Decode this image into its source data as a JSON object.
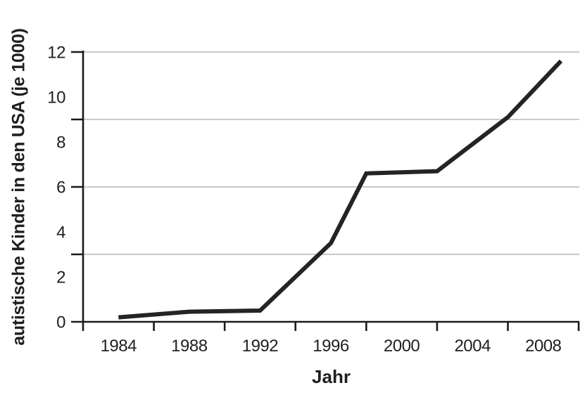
{
  "chart_data": {
    "type": "line",
    "title": "",
    "xlabel": "Jahr",
    "ylabel": "autistische Kinder in den USA (je 1000)",
    "x": [
      1984,
      1988,
      1992,
      1996,
      1998,
      2002,
      2006,
      2009
    ],
    "y": [
      0.2,
      0.45,
      0.5,
      3.5,
      6.6,
      6.7,
      9.1,
      11.6
    ],
    "xlim": [
      1982,
      2010
    ],
    "ylim": [
      0,
      12
    ],
    "x_tick_labels": [
      "1984",
      "1988",
      "1992",
      "1996",
      "2000",
      "2004",
      "2008"
    ],
    "x_tick_label_years": [
      1984,
      1988,
      1992,
      1996,
      2000,
      2004,
      2008
    ],
    "x_tick_marks": [
      1982,
      1986,
      1990,
      1994,
      1998,
      2002,
      2006,
      2010
    ],
    "y_tick_labels": [
      "0",
      "2",
      "4",
      "6",
      "8",
      "10",
      "12"
    ],
    "y_tick_label_values": [
      0,
      2,
      4,
      6,
      8,
      10,
      12
    ],
    "y_tick_marks": [
      0,
      3,
      6,
      9,
      12
    ],
    "y_gridlines": [
      3,
      6,
      9,
      12
    ],
    "grid": true,
    "legend": false,
    "colors": {
      "line": "#242424",
      "grid": "#c9c9c9",
      "axis": "#1a1a1a",
      "text": "#1f1f1f",
      "background": "#ffffff"
    }
  }
}
